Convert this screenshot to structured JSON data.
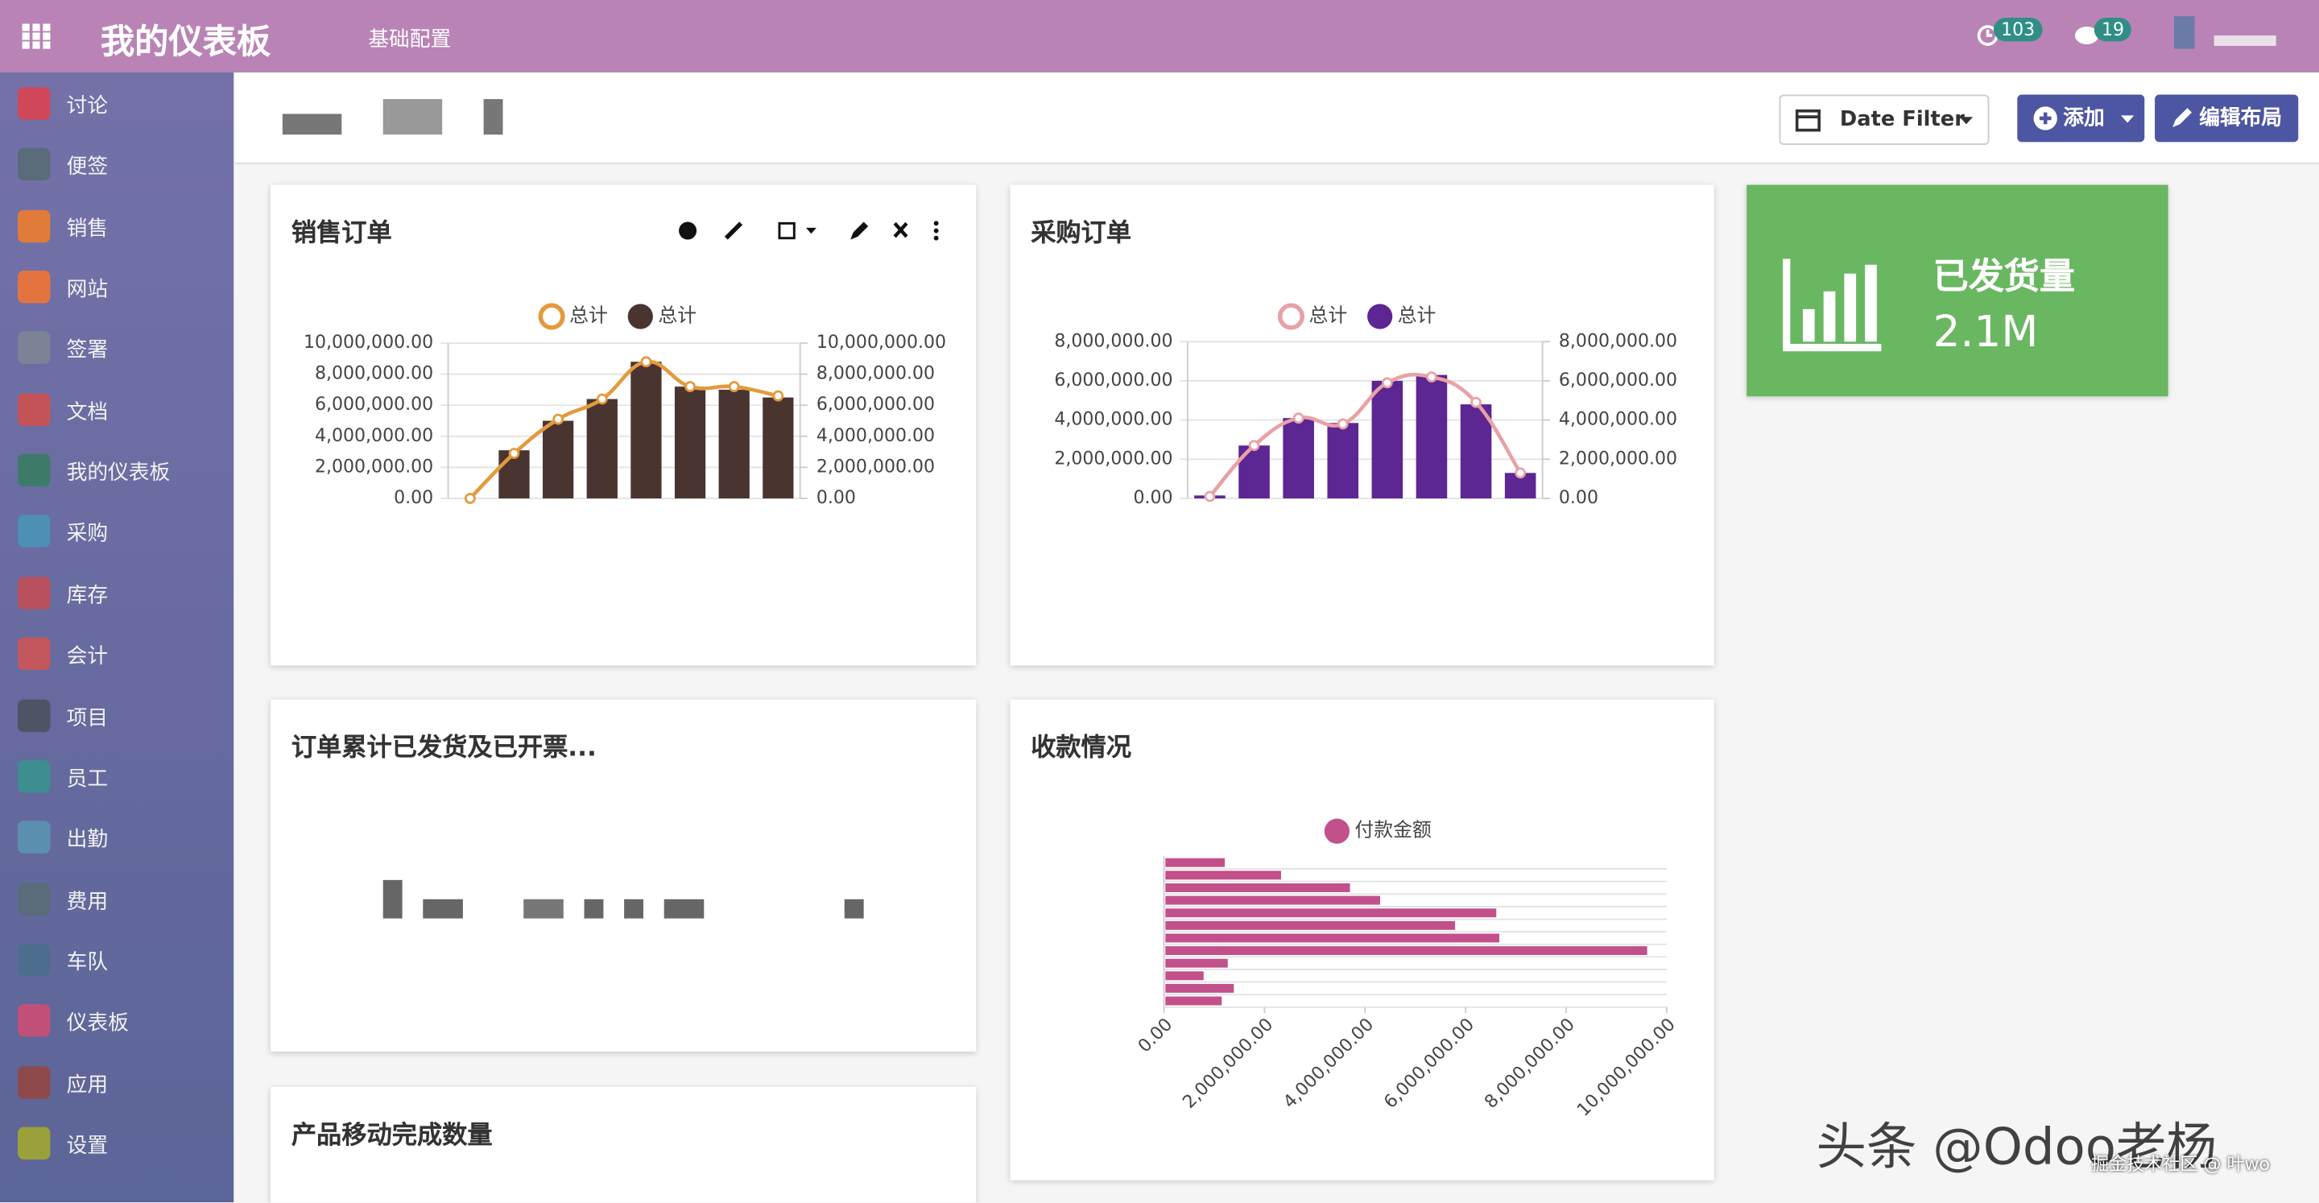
{
  "header": {
    "app_title": "我的仪表板",
    "menu": "基础配置",
    "activity_count": 103,
    "message_count": 19
  },
  "sidebar": {
    "items": [
      "讨论",
      "便签",
      "销售",
      "网站",
      "签署",
      "文档",
      "我的仪表板",
      "采购",
      "库存",
      "会计",
      "项目",
      "员工",
      "出勤",
      "费用",
      "车队",
      "仪表板",
      "应用",
      "设置"
    ]
  },
  "toolbar": {
    "date_filter": "Date Filter",
    "add": "添加",
    "edit_layout": "编辑布局"
  },
  "kpi": {
    "title": "已发货量",
    "value": "2.1M"
  },
  "panels": {
    "invoiced": "订单累计已发货及已开票...",
    "product_moves": "产品移动完成数量"
  },
  "watermark": {
    "main": "头条 @Odoo老杨",
    "sub": "掘金技术社区 @ 叶wo"
  },
  "chart_data": [
    {
      "type": "combo",
      "title": "销售订单",
      "categories": [
        null,
        null,
        null,
        null,
        null,
        null,
        null,
        null
      ],
      "series": [
        {
          "name": "总计",
          "type": "line",
          "axis": "y2",
          "color": "#e39a3e",
          "values": [
            0,
            2900000,
            5100000,
            6400000,
            8800000,
            7200000,
            7200000,
            6600000
          ]
        },
        {
          "name": "总计",
          "type": "bar",
          "color": "#4a3430",
          "values": [
            0,
            3100000,
            5000000,
            6400000,
            8800000,
            7200000,
            7000000,
            6500000
          ]
        }
      ],
      "ylim": [
        0,
        10000000
      ],
      "yticks": [
        {
          "value": 0,
          "label": "0.00"
        },
        {
          "value": 2000000,
          "label": "2,000,000.00"
        },
        {
          "value": 4000000,
          "label": "4,000,000.00"
        },
        {
          "value": 6000000,
          "label": "6,000,000.00"
        },
        {
          "value": 8000000,
          "label": "8,000,000.00"
        },
        {
          "value": 10000000,
          "label": "10,000,000.00"
        }
      ],
      "y2lim": [
        0,
        10000000
      ],
      "y2ticks": [
        {
          "value": 0,
          "label": "0.00"
        },
        {
          "value": 2000000,
          "label": "2,000,000.00"
        },
        {
          "value": 4000000,
          "label": "4,000,000.00"
        },
        {
          "value": 6000000,
          "label": "6,000,000.00"
        },
        {
          "value": 8000000,
          "label": "8,000,000.00"
        },
        {
          "value": 10000000,
          "label": "10,000,000.00"
        }
      ],
      "grid": true
    },
    {
      "type": "combo",
      "title": "采购订单",
      "categories": [
        null,
        null,
        null,
        null,
        null,
        null,
        null,
        null
      ],
      "series": [
        {
          "name": "总计",
          "type": "line",
          "axis": "y2",
          "color": "#e8a1a6",
          "values": [
            100000,
            2700000,
            4100000,
            3800000,
            5900000,
            6200000,
            4900000,
            1300000
          ]
        },
        {
          "name": "总计",
          "type": "bar",
          "color": "#5c2693",
          "values": [
            150000,
            2700000,
            4100000,
            3850000,
            6000000,
            6300000,
            4800000,
            1300000
          ]
        }
      ],
      "ylim": [
        0,
        8000000
      ],
      "yticks": [
        {
          "value": 0,
          "label": "0.00"
        },
        {
          "value": 2000000,
          "label": "2,000,000.00"
        },
        {
          "value": 4000000,
          "label": "4,000,000.00"
        },
        {
          "value": 6000000,
          "label": "6,000,000.00"
        },
        {
          "value": 8000000,
          "label": "8,000,000.00"
        }
      ],
      "y2lim": [
        0,
        8000000
      ],
      "y2ticks": [
        {
          "value": 0,
          "label": "0.00"
        },
        {
          "value": 2000000,
          "label": "2,000,000.00"
        },
        {
          "value": 4000000,
          "label": "4,000,000.00"
        },
        {
          "value": 6000000,
          "label": "6,000,000.00"
        },
        {
          "value": 8000000,
          "label": "8,000,000.00"
        }
      ],
      "grid": true
    },
    {
      "type": "hbar",
      "title": "收款情况",
      "categories": [
        null,
        null,
        null,
        null,
        null,
        null,
        null,
        null,
        null,
        null,
        null,
        null
      ],
      "series": [
        {
          "name": "付款金额",
          "color": "#c2508b",
          "values": [
            1180000,
            2300000,
            3670000,
            4270000,
            6580000,
            5760000,
            6640000,
            9580000,
            1240000,
            760000,
            1360000,
            1120000
          ]
        }
      ],
      "xlim": [
        0,
        10000000
      ],
      "xticks": [
        {
          "value": 0,
          "label": "0.00"
        },
        {
          "value": 2000000,
          "label": "2,000,000.00"
        },
        {
          "value": 4000000,
          "label": "4,000,000.00"
        },
        {
          "value": 6000000,
          "label": "6,000,000.00"
        },
        {
          "value": 8000000,
          "label": "8,000,000.00"
        },
        {
          "value": 10000000,
          "label": "10,000,000.00"
        }
      ],
      "grid": true
    }
  ]
}
